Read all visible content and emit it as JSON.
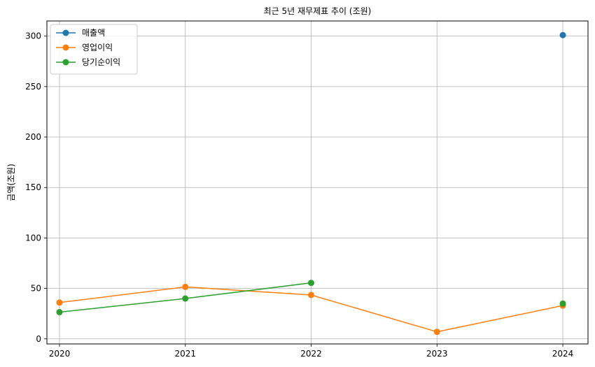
{
  "chart_data": {
    "type": "line",
    "title": "최근 5년 재무제표 추이 (조원)",
    "xlabel": "",
    "ylabel": "금액(조원)",
    "x": [
      "2020",
      "2021",
      "2022",
      "2023",
      "2024"
    ],
    "xlim": [
      2019.9,
      2024.2
    ],
    "ylim": [
      -5,
      315
    ],
    "yticks": [
      0,
      50,
      100,
      150,
      200,
      250,
      300
    ],
    "grid": true,
    "legend_position": "top-left",
    "series": [
      {
        "name": "매출액",
        "color": "#1f77b4",
        "points": [
          [
            2024,
            301
          ]
        ]
      },
      {
        "name": "영업이익",
        "color": "#ff7f0e",
        "points": [
          [
            2020,
            36
          ],
          [
            2021,
            51.5
          ],
          [
            2022,
            43.5
          ],
          [
            2023,
            7
          ],
          [
            2024,
            33
          ]
        ]
      },
      {
        "name": "당기순이익",
        "color": "#2ca02c",
        "points": [
          [
            2020,
            26.5
          ],
          [
            2021,
            40
          ],
          [
            2022,
            55.5
          ],
          [
            2024,
            35
          ]
        ]
      }
    ]
  }
}
